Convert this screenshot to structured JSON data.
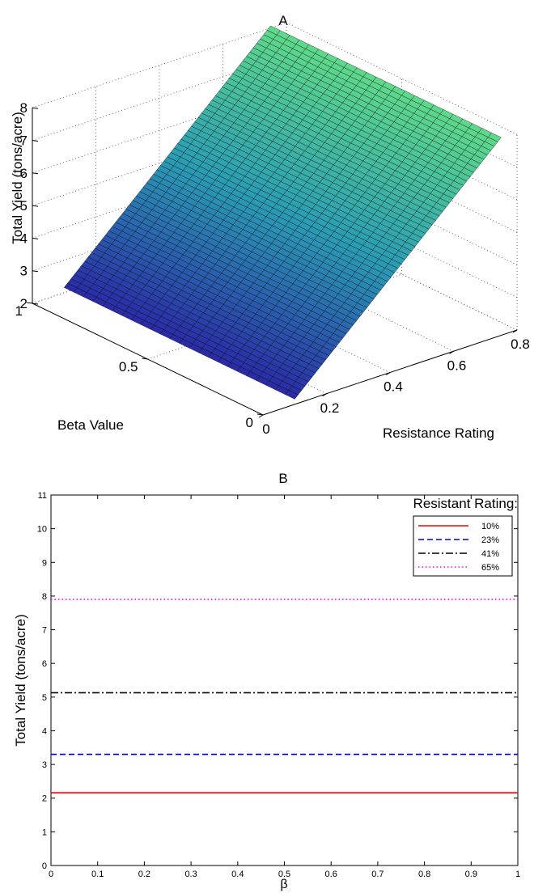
{
  "chart_data": [
    {
      "type": "surface",
      "panel_label": "A",
      "xlabel": "Resistance Rating",
      "ylabel": "Beta Value",
      "zlabel": "Total Yield (tons/acre)",
      "x_ticks": [
        "0",
        "0.2",
        "0.4",
        "0.6",
        "0.8"
      ],
      "y_ticks": [
        "0",
        "0.5",
        "1"
      ],
      "z_ticks": [
        "2",
        "3",
        "4",
        "5",
        "6",
        "7",
        "8"
      ],
      "xlim": [
        0,
        0.8
      ],
      "ylim": [
        0,
        1
      ],
      "zlim": [
        2,
        8
      ],
      "surface": {
        "x_range": [
          0.1,
          0.75
        ],
        "y_range": [
          0,
          1
        ],
        "z_at_x_min": 2.16,
        "z_at_x_max": 8.07,
        "colormap_low": "#2a2aa6",
        "colormap_mid": "#2a9cb4",
        "colormap_high": "#5fd98a"
      },
      "grid": true
    },
    {
      "type": "line",
      "panel_label": "B",
      "xlabel": "β",
      "ylabel": "Total Yield (tons/acre)",
      "x_ticks": [
        "0",
        "0.1",
        "0.2",
        "0.3",
        "0.4",
        "0.5",
        "0.6",
        "0.7",
        "0.8",
        "0.9",
        "1"
      ],
      "y_ticks": [
        "0",
        "1",
        "2",
        "3",
        "4",
        "5",
        "6",
        "7",
        "8",
        "9",
        "10",
        "11"
      ],
      "xlim": [
        0,
        1
      ],
      "ylim": [
        0,
        11
      ],
      "legend_title": "Resistant Rating:",
      "legend_position": "top-right",
      "series": [
        {
          "name": "10%",
          "x": [
            0,
            1
          ],
          "values": [
            2.16,
            2.16
          ],
          "color": "#ff0000",
          "style": "solid"
        },
        {
          "name": "23%",
          "x": [
            0,
            1
          ],
          "values": [
            3.3,
            3.3
          ],
          "color": "#0000cc",
          "style": "dashed"
        },
        {
          "name": "41%",
          "x": [
            0,
            1
          ],
          "values": [
            5.13,
            5.13
          ],
          "color": "#000000",
          "style": "dashdot"
        },
        {
          "name": "65%",
          "x": [
            0,
            1
          ],
          "values": [
            7.9,
            7.9
          ],
          "color": "#ff00ff",
          "style": "dotted"
        }
      ]
    }
  ]
}
